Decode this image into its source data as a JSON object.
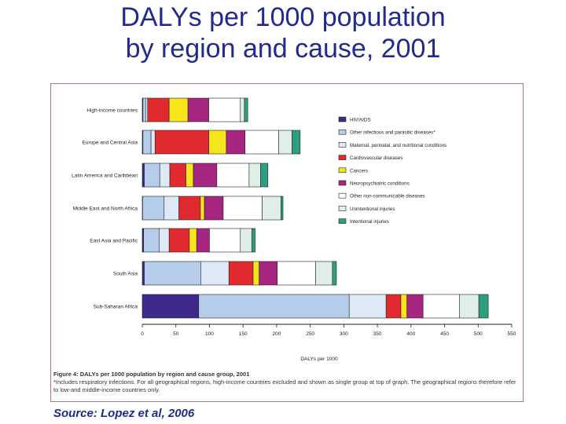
{
  "slide": {
    "title_line1": "DALYs per 1000 population",
    "title_line2": "by region and cause, 2001",
    "source": "Source: Lopez et al, 2006"
  },
  "caption": {
    "figure_label": "Figure 4: DALYs per 1000 population by region and cause group, 2001",
    "footnote": "*Includes respiratory infections. For all geographical regions, high-income countries excluded and shown as single group at top of graph. The geographical regions therefore refer to low-and middle-income countries only."
  },
  "chart_data": {
    "type": "bar",
    "orientation": "horizontal",
    "stacked": true,
    "title": "",
    "xlabel": "DALYs per 1000",
    "ylabel": "",
    "xlim": [
      0,
      550
    ],
    "xticks": [
      0,
      50,
      100,
      150,
      200,
      250,
      300,
      350,
      400,
      450,
      500,
      550
    ],
    "legend_position": "right",
    "categories": [
      "High-income countries",
      "Europe and Central Asia",
      "Latin America and Caribbean",
      "Middle East and North Africa",
      "East Asia and Pacific",
      "South Asia",
      "Sub-Saharan Africa"
    ],
    "series": [
      {
        "name": "HIV/AIDS",
        "color": "#3d2a8a",
        "values": [
          1,
          1,
          3,
          0.5,
          2,
          3,
          84
        ]
      },
      {
        "name": "Other infectious and parasitic diseases*",
        "color": "#b5cdea",
        "values": [
          4,
          12,
          23,
          32,
          23,
          84,
          224
        ]
      },
      {
        "name": "Maternal, perinatal, and nutritional conditions",
        "color": "#ddeaf6",
        "values": [
          3,
          6,
          15,
          22,
          15,
          42,
          55
        ]
      },
      {
        "name": "Cardiovascular diseases",
        "color": "#e02a30",
        "values": [
          32,
          80,
          24,
          32,
          30,
          36,
          22
        ]
      },
      {
        "name": "Cancers",
        "color": "#f5e51a",
        "values": [
          28,
          26,
          11,
          6,
          11,
          9,
          9
        ]
      },
      {
        "name": "Neuropsychiatric conditions",
        "color": "#a52580",
        "values": [
          31,
          28,
          35,
          28,
          19,
          27,
          24
        ]
      },
      {
        "name": "Other non-communicable diseases",
        "color": "#ffffff",
        "values": [
          47,
          50,
          48,
          58,
          46,
          57,
          54
        ]
      },
      {
        "name": "Unintentional injuries",
        "color": "#e0eee8",
        "values": [
          6,
          20,
          17,
          28,
          17,
          25,
          29
        ]
      },
      {
        "name": "Intentional injuries",
        "color": "#2e9e80",
        "values": [
          5,
          12,
          11,
          3,
          5,
          6,
          14
        ]
      }
    ]
  }
}
